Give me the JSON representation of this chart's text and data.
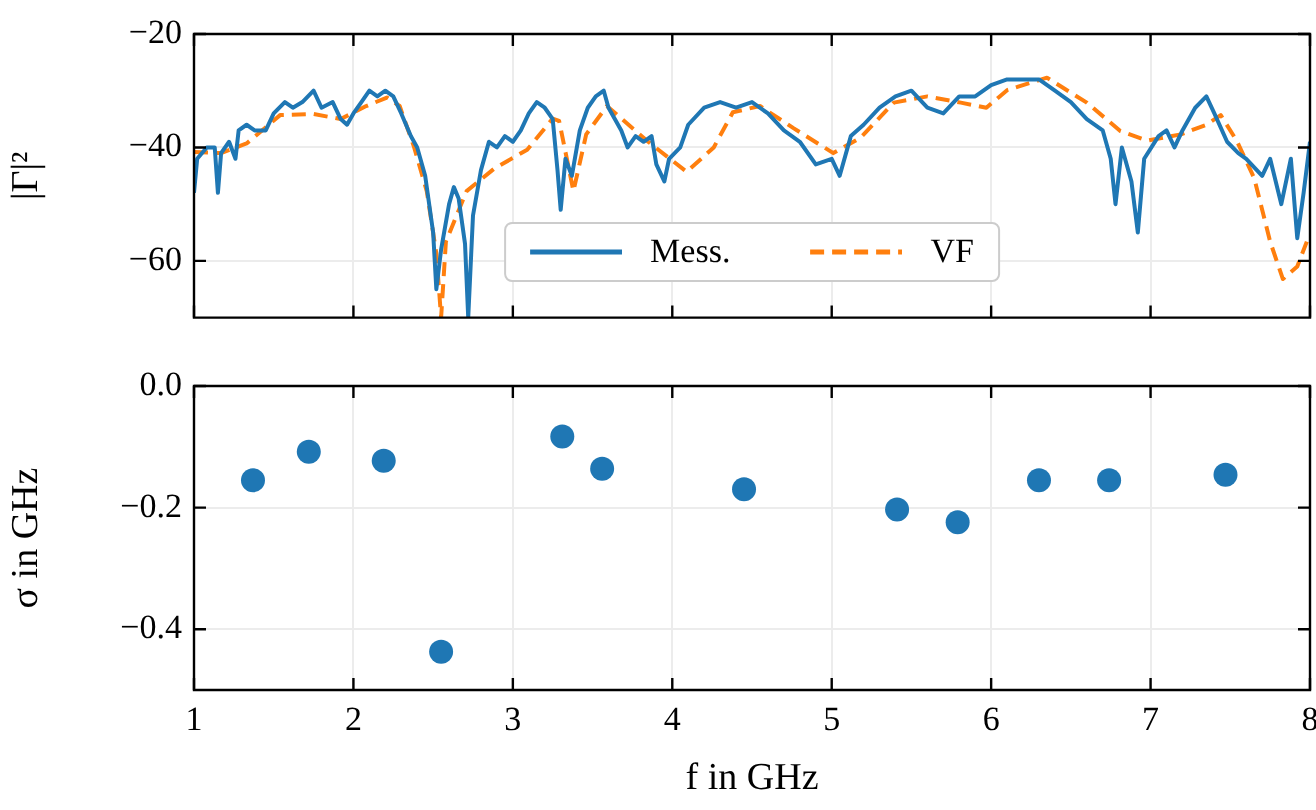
{
  "chart_data": [
    {
      "type": "line",
      "ylabel": "|Γ|²",
      "xlim": [
        1,
        8
      ],
      "xticks": [
        1,
        2,
        3,
        4,
        5,
        6,
        7,
        8
      ],
      "ylim": [
        -70,
        -20
      ],
      "yticks": [
        {
          "value": -20,
          "label": "−20"
        },
        {
          "value": -40,
          "label": "−40"
        },
        {
          "value": -60,
          "label": "−60"
        }
      ],
      "tick_labels": "y",
      "grid": true,
      "legend": "bottom",
      "marker": "none",
      "series": [
        {
          "name": "Mess.",
          "color": "#1f77b4",
          "line_style": "solid",
          "x": [
            1.0,
            1.02,
            1.08,
            1.13,
            1.15,
            1.17,
            1.22,
            1.26,
            1.28,
            1.33,
            1.38,
            1.45,
            1.5,
            1.57,
            1.62,
            1.68,
            1.75,
            1.8,
            1.87,
            1.92,
            1.96,
            2.0,
            2.05,
            2.1,
            2.15,
            2.2,
            2.25,
            2.3,
            2.36,
            2.4,
            2.45,
            2.5,
            2.52,
            2.55,
            2.6,
            2.63,
            2.66,
            2.7,
            2.72,
            2.75,
            2.8,
            2.85,
            2.9,
            2.95,
            3.0,
            3.05,
            3.1,
            3.15,
            3.2,
            3.25,
            3.28,
            3.3,
            3.33,
            3.37,
            3.42,
            3.47,
            3.52,
            3.57,
            3.6,
            3.68,
            3.72,
            3.77,
            3.82,
            3.87,
            3.9,
            3.95,
            3.98,
            4.05,
            4.1,
            4.2,
            4.3,
            4.4,
            4.5,
            4.6,
            4.7,
            4.8,
            4.9,
            5.0,
            5.05,
            5.12,
            5.2,
            5.3,
            5.4,
            5.5,
            5.6,
            5.7,
            5.8,
            5.9,
            6.0,
            6.1,
            6.2,
            6.3,
            6.4,
            6.5,
            6.6,
            6.7,
            6.75,
            6.78,
            6.82,
            6.88,
            6.92,
            6.96,
            7.05,
            7.1,
            7.15,
            7.2,
            7.28,
            7.35,
            7.4,
            7.48,
            7.55,
            7.6,
            7.7,
            7.75,
            7.82,
            7.88,
            7.92,
            7.96,
            8.0
          ],
          "values": [
            -48,
            -42,
            -40,
            -40,
            -48,
            -41,
            -39,
            -42,
            -37,
            -36,
            -37,
            -37,
            -34,
            -32,
            -33,
            -32,
            -30,
            -33,
            -32,
            -35,
            -36,
            -34,
            -32,
            -30,
            -31,
            -30,
            -31,
            -34,
            -38,
            -40,
            -45,
            -55,
            -65,
            -58,
            -50,
            -47,
            -49,
            -57,
            -70,
            -52,
            -44,
            -39,
            -40,
            -38,
            -39,
            -37,
            -34,
            -32,
            -33,
            -35,
            -44,
            -51,
            -42,
            -45,
            -37,
            -33,
            -31,
            -30,
            -33,
            -37,
            -40,
            -38,
            -39,
            -38,
            -43,
            -46,
            -42,
            -40,
            -36,
            -33,
            -32,
            -33,
            -32,
            -34,
            -37,
            -39,
            -43,
            -42,
            -45,
            -38,
            -36,
            -33,
            -31,
            -30,
            -33,
            -34,
            -31,
            -31,
            -29,
            -28,
            -28,
            -28,
            -30,
            -32,
            -35,
            -37,
            -42,
            -50,
            -40,
            -46,
            -55,
            -42,
            -38,
            -37,
            -40,
            -37,
            -33,
            -31,
            -34,
            -39,
            -41,
            -42,
            -45,
            -42,
            -50,
            -42,
            -56,
            -48,
            -39
          ]
        },
        {
          "name": "VF",
          "color": "#ff7f0e",
          "line_style": "dashed",
          "x": [
            1.0,
            1.17,
            1.33,
            1.54,
            1.75,
            1.92,
            2.08,
            2.21,
            2.29,
            2.38,
            2.46,
            2.52,
            2.55,
            2.58,
            2.71,
            2.88,
            3.09,
            3.25,
            3.29,
            3.38,
            3.46,
            3.59,
            3.84,
            4.09,
            4.26,
            4.38,
            4.55,
            4.76,
            5.01,
            5.18,
            5.39,
            5.6,
            5.81,
            5.97,
            6.1,
            6.35,
            6.6,
            6.81,
            6.98,
            7.19,
            7.35,
            7.44,
            7.54,
            7.65,
            7.75,
            7.83,
            7.92,
            7.98
          ],
          "values": [
            -40.8,
            -41,
            -39.3,
            -34.3,
            -34.1,
            -35,
            -32.7,
            -31.2,
            -32.7,
            -39.9,
            -47.7,
            -58.7,
            -70,
            -56.6,
            -47.7,
            -43.8,
            -40.4,
            -34.9,
            -35.3,
            -47.7,
            -37.7,
            -32.7,
            -38.8,
            -44.3,
            -40,
            -33.8,
            -32.7,
            -36.6,
            -41,
            -38.3,
            -32.1,
            -31,
            -32.1,
            -33,
            -29.9,
            -27.7,
            -32.1,
            -37.1,
            -38.8,
            -37.7,
            -36,
            -34.3,
            -38.8,
            -45.4,
            -56.6,
            -63.2,
            -61,
            -56.6
          ]
        }
      ]
    },
    {
      "type": "scatter",
      "xlabel": "f in GHz",
      "ylabel": "σ in GHz",
      "xlim": [
        1,
        8
      ],
      "xticks": [
        1,
        2,
        3,
        4,
        5,
        6,
        7,
        8
      ],
      "ylim": [
        -0.5,
        0
      ],
      "yticks": [
        {
          "value": 0,
          "label": "0.0"
        },
        {
          "value": -0.2,
          "label": "−0.2"
        },
        {
          "value": -0.4,
          "label": "−0.4"
        }
      ],
      "grid": true,
      "marker": "circle",
      "series": [
        {
          "color": "#1f77b4",
          "x": [
            1.37,
            1.72,
            2.19,
            2.55,
            3.31,
            3.56,
            4.45,
            5.41,
            5.79,
            6.3,
            6.74,
            7.47
          ],
          "values": [
            -0.155,
            -0.108,
            -0.123,
            -0.437,
            -0.083,
            -0.136,
            -0.17,
            -0.203,
            -0.224,
            -0.155,
            -0.155,
            -0.146
          ]
        }
      ]
    }
  ]
}
